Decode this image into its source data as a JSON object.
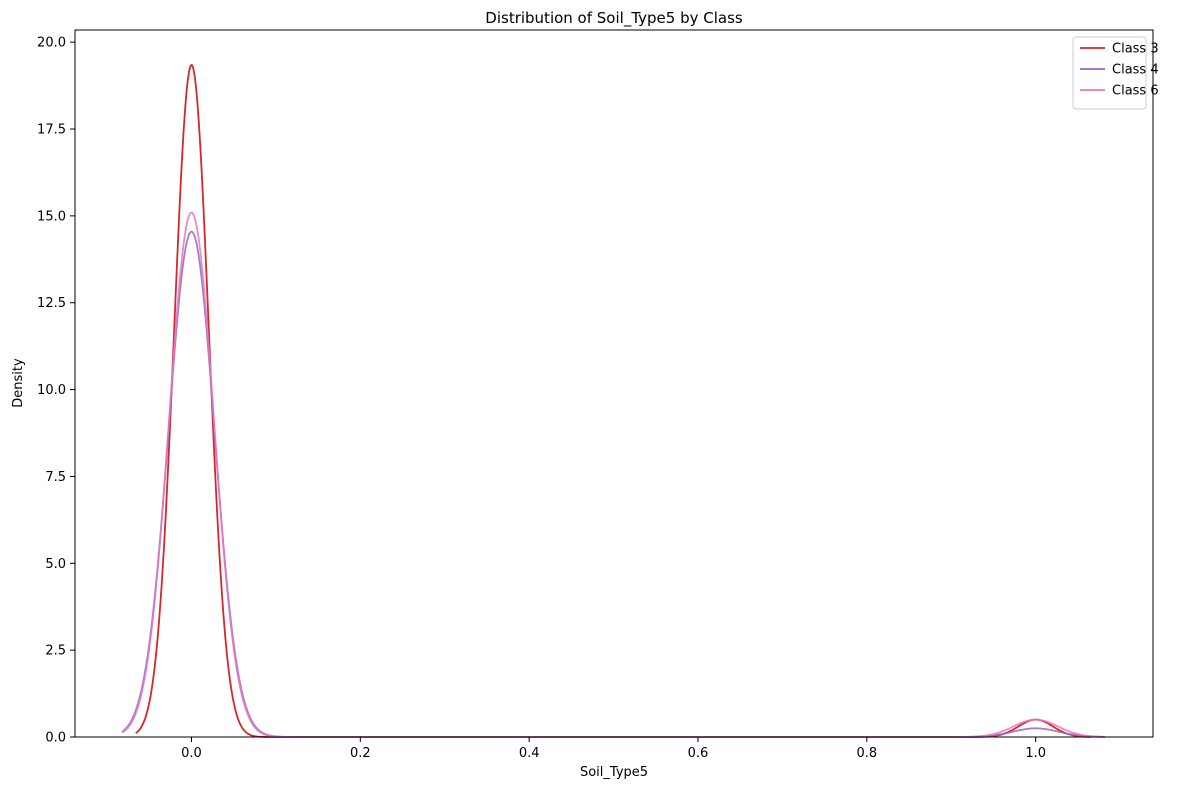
{
  "chart_data": {
    "type": "line",
    "title": "Distribution of Soil_Type5 by Class",
    "xlabel": "Soil_Type5",
    "ylabel": "Density",
    "xlim": [
      -0.138,
      1.139
    ],
    "ylim": [
      0,
      20.35
    ],
    "x_ticks": [
      0.0,
      0.2,
      0.4,
      0.6,
      0.8,
      1.0
    ],
    "x_tick_labels": [
      "0.0",
      "0.2",
      "0.4",
      "0.6",
      "0.8",
      "1.0"
    ],
    "y_ticks": [
      0,
      2.5,
      5,
      7.5,
      10,
      12.5,
      15,
      17.5,
      20
    ],
    "y_tick_labels": [
      "0.0",
      "2.5",
      "5.0",
      "7.5",
      "10.0",
      "12.5",
      "15.0",
      "17.5",
      "20.0"
    ],
    "grid": false,
    "legend_position": "top-right",
    "series": [
      {
        "name": "Class 3",
        "color": "#d62728",
        "x_range": [
          -0.066,
          1.066
        ],
        "components": [
          {
            "center": 0.0,
            "height": 19.35,
            "width": 0.0205
          },
          {
            "center": 1.0,
            "height": 0.5,
            "width": 0.0205
          }
        ]
      },
      {
        "name": "Class 4",
        "color": "#9467bd",
        "x_range": [
          -0.082,
          1.082
        ],
        "components": [
          {
            "center": 0.0,
            "height": 14.55,
            "width": 0.0272
          },
          {
            "center": 1.0,
            "height": 0.25,
            "width": 0.0272
          }
        ]
      },
      {
        "name": "Class 6",
        "color": "#e377c2",
        "x_range": [
          -0.082,
          1.082
        ],
        "components": [
          {
            "center": 0.0,
            "height": 15.1,
            "width": 0.0265
          },
          {
            "center": 1.0,
            "height": 0.5,
            "width": 0.0265
          }
        ]
      }
    ]
  }
}
